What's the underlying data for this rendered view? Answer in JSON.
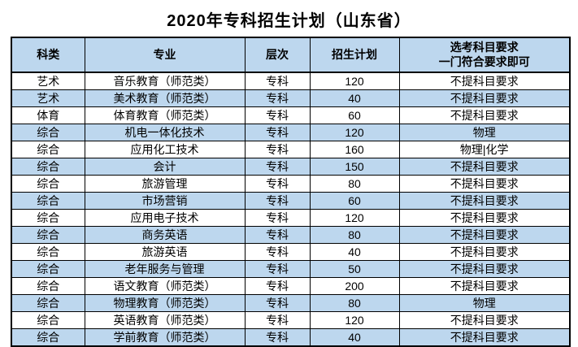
{
  "title": "2020年专科招生计划（山东省）",
  "colors": {
    "header_bg": "#BDD7EE",
    "alt_row_bg": "#BDD7EE",
    "border": "#000000",
    "text": "#000000"
  },
  "table": {
    "headers": [
      "科类",
      "专业",
      "层次",
      "招生计划",
      "选考科目要求\n一门符合要求即可"
    ],
    "rows": [
      [
        "艺术",
        "音乐教育（师范类）",
        "专科",
        "120",
        "不提科目要求"
      ],
      [
        "艺术",
        "美术教育（师范类）",
        "专科",
        "40",
        "不提科目要求"
      ],
      [
        "体育",
        "体育教育（师范类）",
        "专科",
        "60",
        "不提科目要求"
      ],
      [
        "综合",
        "机电一体化技术",
        "专科",
        "120",
        "物理"
      ],
      [
        "综合",
        "应用化工技术",
        "专科",
        "160",
        "物理|化学"
      ],
      [
        "综合",
        "会计",
        "专科",
        "150",
        "不提科目要求"
      ],
      [
        "综合",
        "旅游管理",
        "专科",
        "80",
        "不提科目要求"
      ],
      [
        "综合",
        "市场营销",
        "专科",
        "60",
        "不提科目要求"
      ],
      [
        "综合",
        "应用电子技术",
        "专科",
        "120",
        "不提科目要求"
      ],
      [
        "综合",
        "商务英语",
        "专科",
        "80",
        "不提科目要求"
      ],
      [
        "综合",
        "旅游英语",
        "专科",
        "40",
        "不提科目要求"
      ],
      [
        "综合",
        "老年服务与管理",
        "专科",
        "50",
        "不提科目要求"
      ],
      [
        "综合",
        "语文教育（师范类）",
        "专科",
        "200",
        "不提科目要求"
      ],
      [
        "综合",
        "物理教育（师范类）",
        "专科",
        "80",
        "物理"
      ],
      [
        "综合",
        "英语教育（师范类）",
        "专科",
        "120",
        "不提科目要求"
      ],
      [
        "综合",
        "学前教育（师范类）",
        "专科",
        "40",
        "不提科目要求"
      ]
    ]
  }
}
